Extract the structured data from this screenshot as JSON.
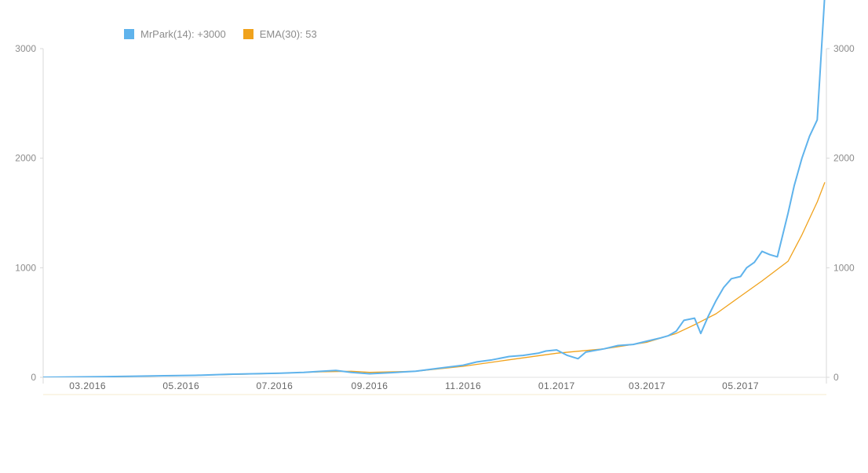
{
  "chart_data": {
    "type": "line",
    "title": "",
    "xlabel": "",
    "ylabel": "",
    "ylim": [
      0,
      3000
    ],
    "yticks": [
      0,
      1000,
      2000,
      3000
    ],
    "ytick_labels_left": [
      "0",
      "1000",
      "2000",
      "3000"
    ],
    "ytick_labels_right": [
      "0",
      "1000",
      "2000",
      "3000"
    ],
    "xticks": [
      {
        "date": "2016-03-01",
        "label": "03.2016"
      },
      {
        "date": "2016-05-01",
        "label": "05.2016"
      },
      {
        "date": "2016-07-01",
        "label": "07.2016"
      },
      {
        "date": "2016-09-01",
        "label": "09.2016"
      },
      {
        "date": "2016-11-01",
        "label": "11.2016"
      },
      {
        "date": "2017-01-01",
        "label": "01.2017"
      },
      {
        "date": "2017-03-01",
        "label": "03.2017"
      },
      {
        "date": "2017-05-01",
        "label": "05.2017"
      }
    ],
    "grid": false,
    "legend_position": "top-left",
    "series": [
      {
        "name": "MrPark(14): +3000",
        "color": "#5fb3ec",
        "points": [
          [
            "2016-02-01",
            0
          ],
          [
            "2016-02-20",
            3
          ],
          [
            "2016-03-10",
            6
          ],
          [
            "2016-04-01",
            10
          ],
          [
            "2016-04-20",
            14
          ],
          [
            "2016-05-10",
            18
          ],
          [
            "2016-06-01",
            28
          ],
          [
            "2016-06-20",
            33
          ],
          [
            "2016-07-05",
            38
          ],
          [
            "2016-07-20",
            45
          ],
          [
            "2016-08-01",
            55
          ],
          [
            "2016-08-10",
            62
          ],
          [
            "2016-08-20",
            45
          ],
          [
            "2016-09-01",
            32
          ],
          [
            "2016-09-15",
            42
          ],
          [
            "2016-10-01",
            55
          ],
          [
            "2016-10-15",
            80
          ],
          [
            "2016-11-01",
            110
          ],
          [
            "2016-11-10",
            140
          ],
          [
            "2016-11-20",
            160
          ],
          [
            "2016-12-01",
            190
          ],
          [
            "2016-12-10",
            200
          ],
          [
            "2016-12-20",
            220
          ],
          [
            "2016-12-25",
            240
          ],
          [
            "2017-01-01",
            250
          ],
          [
            "2017-01-08",
            200
          ],
          [
            "2017-01-15",
            170
          ],
          [
            "2017-01-20",
            230
          ],
          [
            "2017-02-01",
            260
          ],
          [
            "2017-02-10",
            290
          ],
          [
            "2017-02-20",
            300
          ],
          [
            "2017-03-01",
            330
          ],
          [
            "2017-03-10",
            360
          ],
          [
            "2017-03-15",
            380
          ],
          [
            "2017-03-20",
            420
          ],
          [
            "2017-03-25",
            520
          ],
          [
            "2017-04-01",
            540
          ],
          [
            "2017-04-05",
            400
          ],
          [
            "2017-04-10",
            560
          ],
          [
            "2017-04-15",
            700
          ],
          [
            "2017-04-20",
            820
          ],
          [
            "2017-04-25",
            900
          ],
          [
            "2017-05-01",
            920
          ],
          [
            "2017-05-05",
            1000
          ],
          [
            "2017-05-10",
            1050
          ],
          [
            "2017-05-15",
            1150
          ],
          [
            "2017-05-20",
            1120
          ],
          [
            "2017-05-25",
            1100
          ],
          [
            "2017-06-01",
            1500
          ],
          [
            "2017-06-05",
            1750
          ],
          [
            "2017-06-10",
            2000
          ],
          [
            "2017-06-15",
            2200
          ],
          [
            "2017-06-20",
            2350
          ],
          [
            "2017-06-25",
            3500
          ]
        ]
      },
      {
        "name": "EMA(30): 53",
        "color": "#f0a21c",
        "points": [
          [
            "2016-02-01",
            0
          ],
          [
            "2016-03-01",
            3
          ],
          [
            "2016-04-01",
            8
          ],
          [
            "2016-05-01",
            15
          ],
          [
            "2016-06-01",
            25
          ],
          [
            "2016-07-01",
            35
          ],
          [
            "2016-08-01",
            50
          ],
          [
            "2016-08-20",
            55
          ],
          [
            "2016-09-01",
            45
          ],
          [
            "2016-10-01",
            55
          ],
          [
            "2016-11-01",
            100
          ],
          [
            "2016-12-01",
            160
          ],
          [
            "2017-01-01",
            220
          ],
          [
            "2017-02-01",
            260
          ],
          [
            "2017-03-01",
            320
          ],
          [
            "2017-03-20",
            400
          ],
          [
            "2017-04-01",
            480
          ],
          [
            "2017-04-15",
            580
          ],
          [
            "2017-05-01",
            740
          ],
          [
            "2017-05-15",
            880
          ],
          [
            "2017-06-01",
            1060
          ],
          [
            "2017-06-10",
            1300
          ],
          [
            "2017-06-20",
            1600
          ],
          [
            "2017-06-25",
            1780
          ]
        ]
      }
    ]
  }
}
